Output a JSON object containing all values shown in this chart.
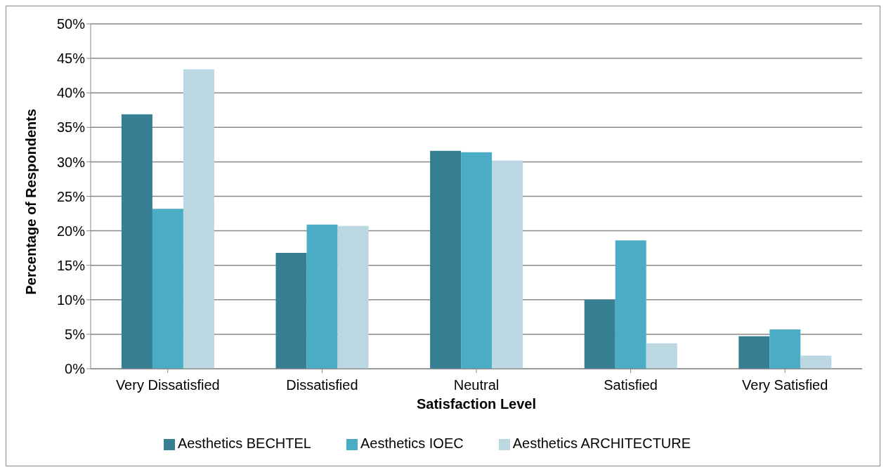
{
  "chart_data": {
    "type": "bar",
    "xlabel": "Satisfaction Level",
    "ylabel": "Percentage of Respondents",
    "categories": [
      "Very Dissatisfied",
      "Dissatisfied",
      "Neutral",
      "Satisfied",
      "Very Satisfied"
    ],
    "series": [
      {
        "name": "Aesthetics BECHTEL",
        "color": "#367f93",
        "values": [
          36.9,
          16.8,
          31.6,
          10.0,
          4.7
        ]
      },
      {
        "name": "Aesthetics IOEC",
        "color": "#4bacc6",
        "values": [
          23.2,
          20.9,
          31.4,
          18.6,
          5.7
        ]
      },
      {
        "name": "Aesthetics ARCHITECTURE",
        "color": "#bbd7e2",
        "values": [
          43.4,
          20.7,
          30.2,
          3.7,
          1.9
        ]
      }
    ],
    "ylim": [
      0,
      50
    ],
    "yticks": [
      {
        "value": 0,
        "label": "0%"
      },
      {
        "value": 5,
        "label": "5%"
      },
      {
        "value": 10,
        "label": "10%"
      },
      {
        "value": 15,
        "label": "15%"
      },
      {
        "value": 20,
        "label": "20%"
      },
      {
        "value": 25,
        "label": "25%"
      },
      {
        "value": 30,
        "label": "30%"
      },
      {
        "value": 35,
        "label": "35%"
      },
      {
        "value": 40,
        "label": "40%"
      },
      {
        "value": 45,
        "label": "45%"
      },
      {
        "value": 50,
        "label": "50%"
      }
    ],
    "grid": "y",
    "legend": "bottom"
  }
}
